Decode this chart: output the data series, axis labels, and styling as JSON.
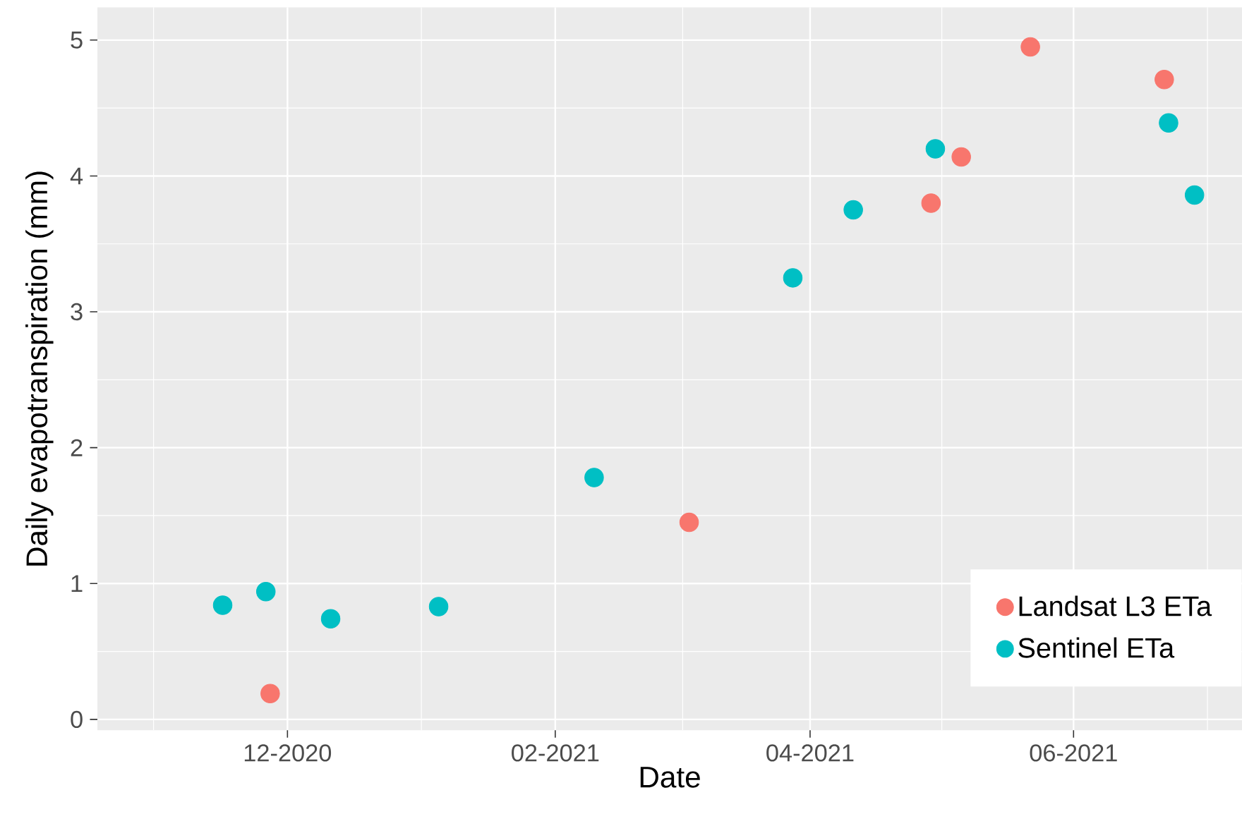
{
  "chart_data": {
    "type": "scatter",
    "xlabel": "Date",
    "ylabel": "Daily evapotranspiration (mm)",
    "xlim": [
      "2020-10-18",
      "2021-07-10"
    ],
    "xticks": [
      {
        "value": "2020-12-01",
        "label": "12-2020"
      },
      {
        "value": "2021-02-01",
        "label": "02-2021"
      },
      {
        "value": "2021-04-01",
        "label": "04-2021"
      },
      {
        "value": "2021-06-01",
        "label": "06-2021"
      }
    ],
    "ylim": [
      -0.08,
      5.24
    ],
    "yticks": [
      0,
      1,
      2,
      3,
      4,
      5
    ],
    "grid": true,
    "legend": "bottom right",
    "marker": "circle",
    "series": [
      {
        "name": "Landsat L3 ETa",
        "color": "#f8766d",
        "x": [
          "2020-11-27",
          "2021-03-04",
          "2021-04-29",
          "2021-05-06",
          "2021-05-22",
          "2021-06-22"
        ],
        "values": [
          0.19,
          1.45,
          3.8,
          4.14,
          4.95,
          4.71
        ]
      },
      {
        "name": "Sentinel ETa",
        "color": "#00bfc4",
        "x": [
          "2020-11-16",
          "2020-11-26",
          "2020-12-11",
          "2021-01-05",
          "2021-02-10",
          "2021-03-28",
          "2021-04-11",
          "2021-04-30",
          "2021-06-23",
          "2021-06-29"
        ],
        "values": [
          0.84,
          0.94,
          0.74,
          0.83,
          1.78,
          3.25,
          3.75,
          4.2,
          4.39,
          3.86
        ]
      }
    ]
  }
}
